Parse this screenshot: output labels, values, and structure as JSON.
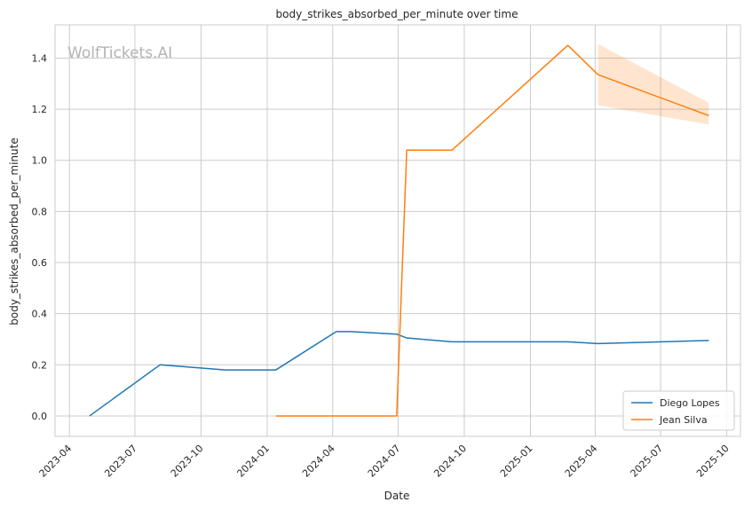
{
  "chart_data": {
    "type": "line",
    "title": "body_strikes_absorbed_per_minute over time",
    "xlabel": "Date",
    "ylabel": "body_strikes_absorbed_per_minute",
    "watermark": "WolfTickets.AI",
    "x_ticks": [
      "2023-04",
      "2023-07",
      "2023-10",
      "2024-01",
      "2024-04",
      "2024-07",
      "2024-10",
      "2025-01",
      "2025-04",
      "2025-07",
      "2025-10"
    ],
    "y_ticks": [
      "0.0",
      "0.2",
      "0.4",
      "0.6",
      "0.8",
      "1.0",
      "1.2",
      "1.4"
    ],
    "xlim": [
      "2023-03-12",
      "2025-10-20"
    ],
    "ylim": [
      -0.08,
      1.53
    ],
    "grid": true,
    "legend_position": "lower-right",
    "series": [
      {
        "name": "Diego Lopes",
        "color": "#1f77b4",
        "points": [
          {
            "x": "2023-04-29",
            "y": 0.0
          },
          {
            "x": "2023-08-05",
            "y": 0.2
          },
          {
            "x": "2023-11-04",
            "y": 0.18
          },
          {
            "x": "2024-01-13",
            "y": 0.18
          },
          {
            "x": "2024-04-06",
            "y": 0.33
          },
          {
            "x": "2024-04-27",
            "y": 0.33
          },
          {
            "x": "2024-06-29",
            "y": 0.32
          },
          {
            "x": "2024-07-13",
            "y": 0.305
          },
          {
            "x": "2024-09-14",
            "y": 0.29
          },
          {
            "x": "2025-02-22",
            "y": 0.29
          },
          {
            "x": "2025-04-05",
            "y": 0.283
          },
          {
            "x": "2025-09-06",
            "y": 0.295
          }
        ]
      },
      {
        "name": "Jean Silva",
        "color": "#ff7f0e",
        "points": [
          {
            "x": "2024-01-13",
            "y": 0.0
          },
          {
            "x": "2024-06-29",
            "y": 0.0
          },
          {
            "x": "2024-07-13",
            "y": 1.04
          },
          {
            "x": "2024-09-14",
            "y": 1.04
          },
          {
            "x": "2025-02-22",
            "y": 1.45
          },
          {
            "x": "2025-04-05",
            "y": 1.335
          },
          {
            "x": "2025-09-06",
            "y": 1.175
          }
        ],
        "band": {
          "color": "#ff7f0e",
          "x": [
            "2025-04-05",
            "2025-09-06"
          ],
          "lower": [
            1.215,
            1.14
          ],
          "upper": [
            1.455,
            1.225
          ]
        }
      }
    ]
  }
}
